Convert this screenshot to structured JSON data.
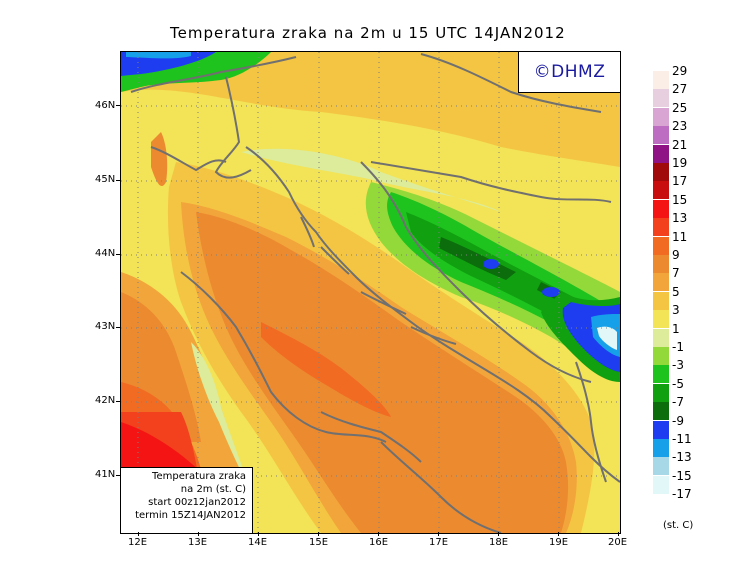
{
  "title": "Temperatura zraka na 2m u 15 UTC 14JAN2012",
  "badge": "©DHMZ",
  "infobox": {
    "line1": "Temperatura zraka",
    "line2": "na 2m (st. C)",
    "line3": "start 00z12jan2012",
    "line4": "termin 15Z14JAN2012"
  },
  "axes": {
    "lat_labels": [
      "46N",
      "45N",
      "44N",
      "43N",
      "42N",
      "41N"
    ],
    "lon_labels": [
      "12E",
      "13E",
      "14E",
      "15E",
      "16E",
      "17E",
      "18E",
      "19E",
      "20E"
    ]
  },
  "legend": {
    "unit": "(st. C)",
    "items": [
      {
        "label": "29",
        "color": "#fbeee6"
      },
      {
        "label": "27",
        "color": "#e8cfe0"
      },
      {
        "label": "25",
        "color": "#d9a6d3"
      },
      {
        "label": "23",
        "color": "#bd6ec3"
      },
      {
        "label": "21",
        "color": "#8f1385"
      },
      {
        "label": "19",
        "color": "#a00a0a"
      },
      {
        "label": "17",
        "color": "#c80e0e"
      },
      {
        "label": "15",
        "color": "#f51414"
      },
      {
        "label": "13",
        "color": "#f2411c"
      },
      {
        "label": "11",
        "color": "#f26b22"
      },
      {
        "label": "9",
        "color": "#ec8a30"
      },
      {
        "label": "7",
        "color": "#f2a53a"
      },
      {
        "label": "5",
        "color": "#f4c542"
      },
      {
        "label": "3",
        "color": "#f3e356"
      },
      {
        "label": "1",
        "color": "#dcec9a"
      },
      {
        "label": "-1",
        "color": "#93d93a"
      },
      {
        "label": "-3",
        "color": "#1ec31e"
      },
      {
        "label": "-5",
        "color": "#10a010"
      },
      {
        "label": "-7",
        "color": "#0b6d0b"
      },
      {
        "label": "-9",
        "color": "#1e3cf0"
      },
      {
        "label": "-11",
        "color": "#16a0ea"
      },
      {
        "label": "-13",
        "color": "#a6d8e8"
      },
      {
        "label": "-15",
        "color": "#e2f7f7"
      },
      {
        "label": "-17",
        "color": "#ffffff"
      }
    ]
  }
}
